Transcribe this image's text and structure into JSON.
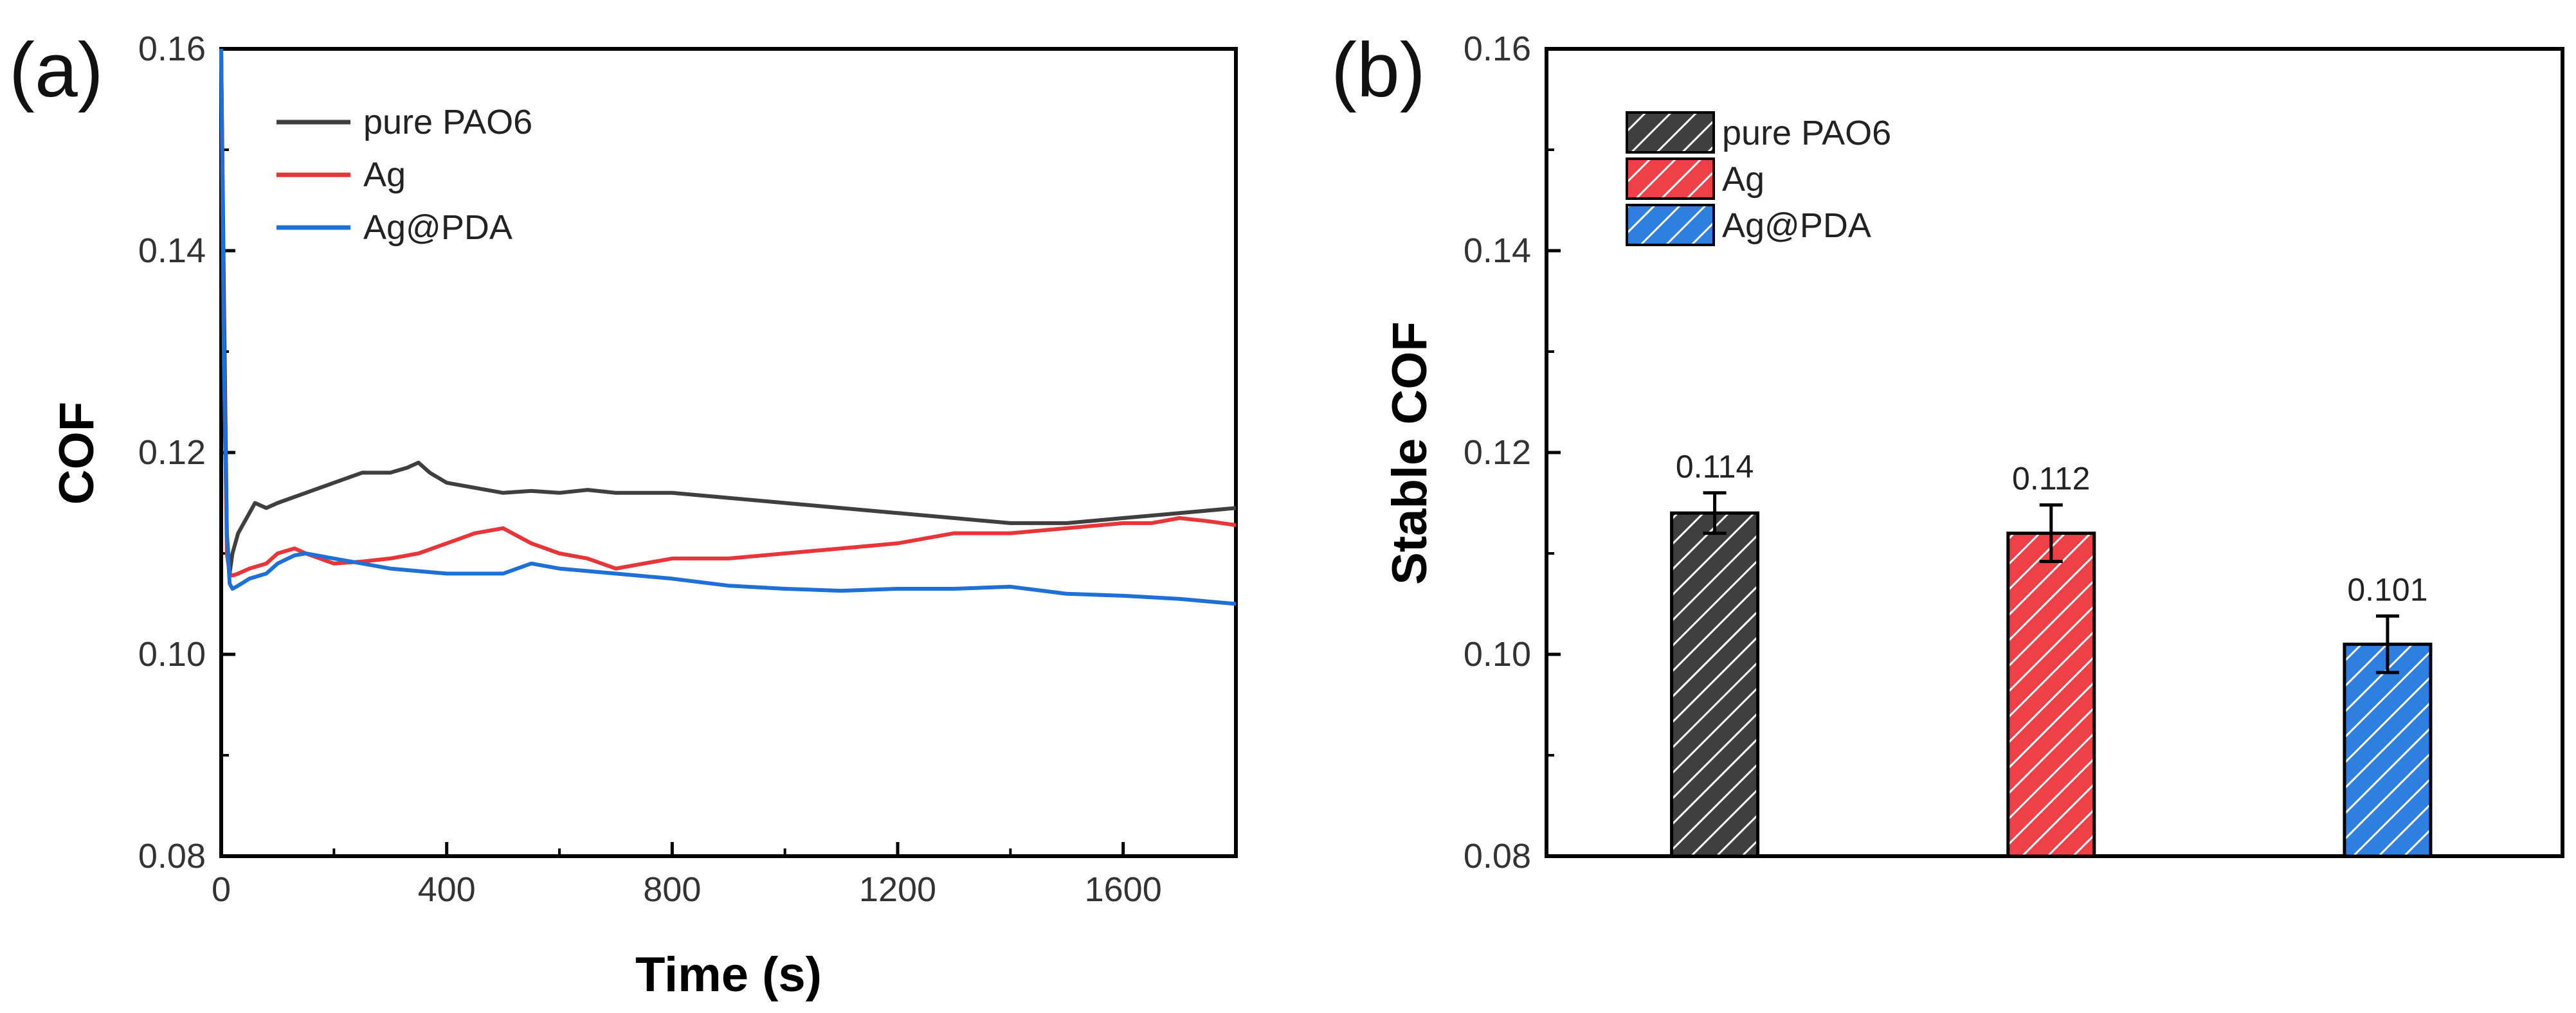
{
  "chart_data": [
    {
      "panel": "(a)",
      "type": "line",
      "title": "",
      "xlabel": "Time (s)",
      "ylabel": "COF",
      "xlim": [
        0,
        1800
      ],
      "ylim": [
        0.08,
        0.16
      ],
      "xticks": [
        0,
        400,
        800,
        1200,
        1600
      ],
      "yticks": [
        0.08,
        0.1,
        0.12,
        0.14,
        0.16
      ],
      "xtick_labels": [
        "0",
        "400",
        "800",
        "1200",
        "1600"
      ],
      "ytick_labels": [
        "0.08",
        "0.10",
        "0.12",
        "0.14",
        "0.16"
      ],
      "legend": [
        "pure PAO6",
        "Ag",
        "Ag@PDA"
      ],
      "series": [
        {
          "name": "pure PAO6",
          "color": "#3f3f3f",
          "x": [
            0,
            5,
            10,
            15,
            20,
            30,
            40,
            60,
            80,
            100,
            150,
            200,
            250,
            300,
            330,
            350,
            370,
            400,
            450,
            500,
            550,
            600,
            650,
            700,
            800,
            900,
            1000,
            1100,
            1200,
            1300,
            1400,
            1500,
            1600,
            1700,
            1800
          ],
          "y": [
            0.16,
            0.135,
            0.112,
            0.108,
            0.11,
            0.112,
            0.113,
            0.115,
            0.1145,
            0.115,
            0.116,
            0.117,
            0.118,
            0.118,
            0.1185,
            0.119,
            0.118,
            0.117,
            0.1165,
            0.116,
            0.1162,
            0.116,
            0.1163,
            0.116,
            0.116,
            0.1155,
            0.115,
            0.1145,
            0.114,
            0.1135,
            0.113,
            0.113,
            0.1135,
            0.114,
            0.1145
          ]
        },
        {
          "name": "Ag",
          "color": "#e8353a",
          "x": [
            0,
            5,
            10,
            15,
            20,
            30,
            50,
            80,
            100,
            130,
            150,
            200,
            250,
            300,
            350,
            400,
            450,
            500,
            550,
            600,
            650,
            700,
            800,
            900,
            1000,
            1100,
            1200,
            1300,
            1400,
            1500,
            1600,
            1650,
            1700,
            1750,
            1800
          ],
          "y": [
            0.16,
            0.13,
            0.11,
            0.108,
            0.1078,
            0.108,
            0.1085,
            0.109,
            0.11,
            0.1105,
            0.11,
            0.109,
            0.1092,
            0.1095,
            0.11,
            0.111,
            0.112,
            0.1125,
            0.111,
            0.11,
            0.1095,
            0.1085,
            0.1095,
            0.1095,
            0.11,
            0.1105,
            0.111,
            0.112,
            0.112,
            0.1125,
            0.113,
            0.113,
            0.1135,
            0.1132,
            0.1128
          ]
        },
        {
          "name": "Ag@PDA",
          "color": "#1e6fd6",
          "x": [
            0,
            5,
            10,
            15,
            20,
            30,
            50,
            80,
            100,
            130,
            150,
            200,
            250,
            300,
            400,
            500,
            550,
            600,
            700,
            800,
            900,
            1000,
            1100,
            1200,
            1300,
            1400,
            1500,
            1600,
            1700,
            1800
          ],
          "y": [
            0.16,
            0.128,
            0.112,
            0.107,
            0.1065,
            0.1068,
            0.1075,
            0.108,
            0.109,
            0.1098,
            0.11,
            0.1095,
            0.109,
            0.1085,
            0.108,
            0.108,
            0.109,
            0.1085,
            0.108,
            0.1075,
            0.1068,
            0.1065,
            0.1063,
            0.1065,
            0.1065,
            0.1067,
            0.106,
            0.1058,
            0.1055,
            0.105
          ]
        }
      ]
    },
    {
      "panel": "(b)",
      "type": "bar",
      "title": "",
      "xlabel": "",
      "ylabel": "Stable COF",
      "ylim": [
        0.08,
        0.16
      ],
      "yticks": [
        0.08,
        0.1,
        0.12,
        0.14,
        0.16
      ],
      "ytick_labels": [
        "0.08",
        "0.10",
        "0.12",
        "0.14",
        "0.16"
      ],
      "categories": [
        "pure PAO6",
        "Ag",
        "Ag@PDA"
      ],
      "values": [
        0.114,
        0.112,
        0.101
      ],
      "errors": [
        0.002,
        0.0028,
        0.0028
      ],
      "data_labels": [
        "0.114",
        "0.112",
        "0.101"
      ],
      "colors": [
        "#3f3f3f",
        "#ee4046",
        "#2f7fe0"
      ],
      "legend": [
        "pure PAO6",
        "Ag",
        "Ag@PDA"
      ]
    }
  ]
}
